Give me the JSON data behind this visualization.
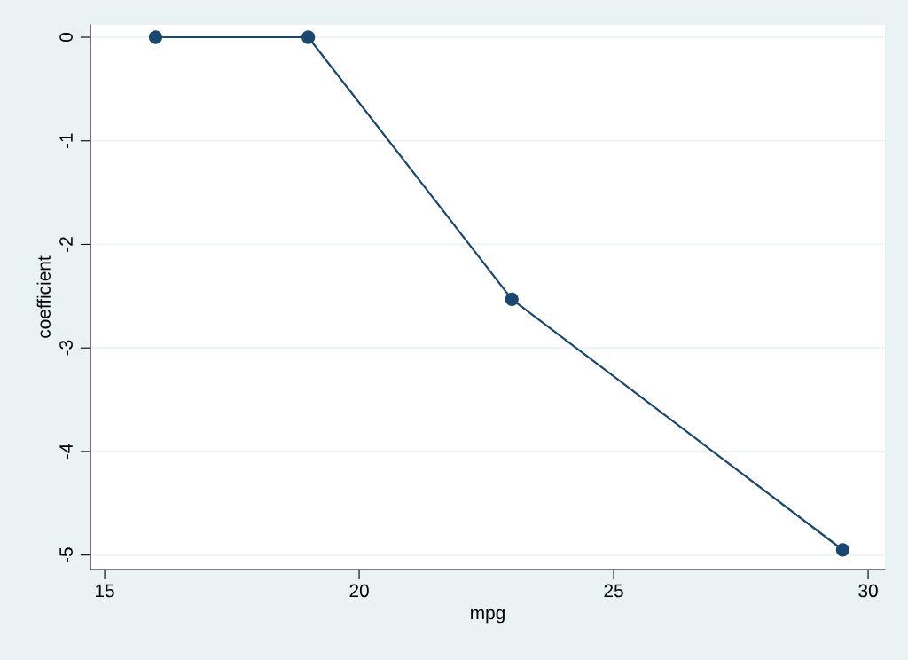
{
  "chart_data": {
    "type": "line",
    "xlabel": "mpg",
    "ylabel": "coefficient",
    "x": [
      16,
      19,
      23,
      29.5
    ],
    "series": [
      {
        "color": "#1a476f",
        "values": [
          0,
          0,
          -2.53,
          -4.95
        ]
      }
    ],
    "xlim": [
      14.72,
      30.33
    ],
    "xticks": [
      15,
      20,
      25,
      30
    ],
    "ylim": [
      -5.14,
      0.12
    ],
    "yticks": [
      -5,
      -4,
      -3,
      -2,
      -1,
      0
    ],
    "grid": "y",
    "marker": "circle",
    "line_style": "solid"
  }
}
